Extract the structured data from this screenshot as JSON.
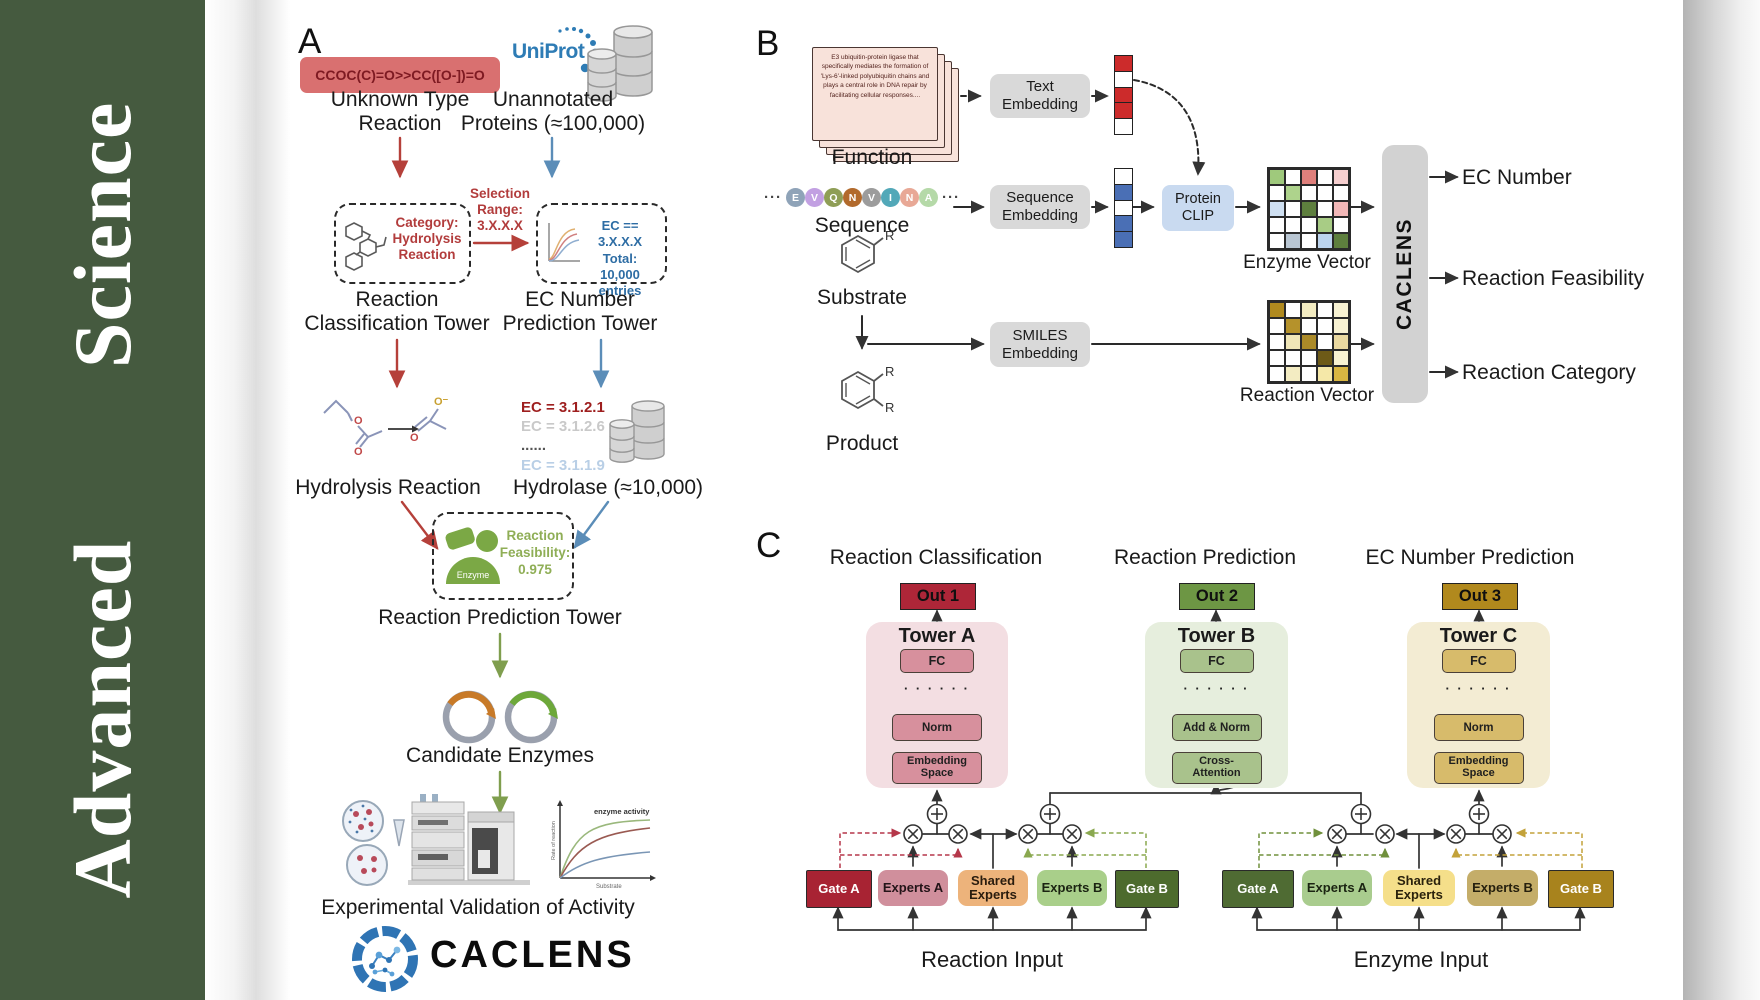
{
  "sidebar": {
    "journal": "Advanced Science",
    "bg": "#455a3f"
  },
  "panelA": {
    "label": "A",
    "smiles": "CCOC(C)=O>>CC([O-])=O",
    "uniprot": "UniProt",
    "unknown": "Unknown Type\nReaction",
    "unannotated": "Unannotated\nProteins (≈100,000)",
    "selection": "Selection\nRange:\n3.X.X.X",
    "class_box": "Category:\nHydrolysis\nReaction",
    "ec_box": "EC == 3.X.X.X\nTotal: 10,000\nentries",
    "class_tower": "Reaction\nClassification Tower",
    "ec_tower": "EC Number\nPrediction Tower",
    "hydrolysis": "Hydrolysis Reaction",
    "ec_list": [
      {
        "text": "EC = 3.1.2.1",
        "color": "#9e1f1f"
      },
      {
        "text": "EC = 3.1.2.6",
        "color": "#c9c9c9"
      },
      {
        "text": "......",
        "color": "#555555"
      },
      {
        "text": "EC = 3.1.1.9",
        "color": "#b9cfe6"
      }
    ],
    "hydrolase": "Hydrolase (≈10,000)",
    "enzyme_badge": "Enzyme",
    "feasibility": "Reaction\nFeasibility:\n0.975",
    "pred_tower": "Reaction Prediction Tower",
    "candidates": "Candidate Enzymes",
    "graph": {
      "title": "enzyme activity",
      "ylabel": "Rate of reaction",
      "xlabel": "Substrate"
    },
    "validation": "Experimental Validation of Activity",
    "logo": "CACLENS"
  },
  "panelB": {
    "label": "B",
    "function_card": "E3 ubiquitin-protein ligase that specifically mediates the formation of 'Lys-6'-linked polyubiquitin chains and plays a central role in DNA repair by facilitating cellular responses....",
    "function": "Function",
    "sequence": "Sequence",
    "ellipsis": "···",
    "residues": [
      {
        "l": "E",
        "c": "#8fa3b8"
      },
      {
        "l": "V",
        "c": "#c2a0e2"
      },
      {
        "l": "Q",
        "c": "#8f9e56"
      },
      {
        "l": "N",
        "c": "#b26a2c"
      },
      {
        "l": "V",
        "c": "#9c9c9c"
      },
      {
        "l": "I",
        "c": "#52a8b8"
      },
      {
        "l": "N",
        "c": "#e8a896"
      },
      {
        "l": "A",
        "c": "#b5d9a8"
      }
    ],
    "text_emb": "Text\nEmbedding",
    "seq_emb": "Sequence\nEmbedding",
    "smiles_emb": "SMILES\nEmbedding",
    "clip": "Protein\nCLIP",
    "substrate": "Substrate",
    "product": "Product",
    "r_label": "R",
    "text_vec": [
      "#cc2b2b",
      "#ffffff",
      "#cc2b2b",
      "#cc2b2b",
      "#ffffff"
    ],
    "seq_vec": [
      "#ffffff",
      "#4a6fb5",
      "#ffffff",
      "#4a6fb5",
      "#4a6fb5"
    ],
    "enzyme_vec": {
      "label": "Enzyme Vector",
      "cells": [
        "#9fc97c",
        "#ffffff",
        "#e0807c",
        "#ffffff",
        "#f6cfcf",
        "#ffffff",
        "#aed38c",
        "#ffffff",
        "#ffffff",
        "#ffffff",
        "#cfe0f2",
        "#ffffff",
        "#5e7f3e",
        "#ffffff",
        "#f2b8b8",
        "#ffffff",
        "#ffffff",
        "#ffffff",
        "#a8cc85",
        "#ffffff",
        "#ffffff",
        "#b9c6d3",
        "#ffffff",
        "#bcd4ee",
        "#5e7f3e"
      ]
    },
    "reaction_vec": {
      "label": "Reaction Vector",
      "cells": [
        "#b08a1f",
        "#ffffff",
        "#f3ecc2",
        "#ffffff",
        "#f8f2d2",
        "#ffffff",
        "#b5922b",
        "#ffffff",
        "#ffffff",
        "#f8f2d2",
        "#ffffff",
        "#f0e6b8",
        "#ab8a28",
        "#ffffff",
        "#ead9a0",
        "#ffffff",
        "#ffffff",
        "#ffffff",
        "#6d5a17",
        "#f8f2d2",
        "#ffffff",
        "#f3ecc2",
        "#ffffff",
        "#f5e8a8",
        "#d9b642"
      ]
    },
    "caclens": "CACLENS",
    "outputs": [
      "EC Number",
      "Reaction Feasibility",
      "Reaction Category"
    ]
  },
  "panelC": {
    "label": "C",
    "headers": [
      "Reaction Classification",
      "Reaction Prediction",
      "EC Number Prediction"
    ],
    "towers": [
      {
        "out": "Out 1",
        "out_bg": "#ae2638",
        "name": "Tower A",
        "fc": "FC",
        "dots": "· · · · · ·",
        "mid": "Norm",
        "bottom": "Embedding\nSpace",
        "bg": "#f3dee2",
        "box_bg": "#d7909d"
      },
      {
        "out": "Out 2",
        "out_bg": "#6d9644",
        "name": "Tower B",
        "fc": "FC",
        "dots": "· · · · · ·",
        "mid": "Add & Norm",
        "bottom": "Cross-\nAttention",
        "bg": "#e6eedd",
        "box_bg": "#a9c28c"
      },
      {
        "out": "Out 3",
        "out_bg": "#b1891d",
        "name": "Tower C",
        "fc": "FC",
        "dots": "· · · · · ·",
        "mid": "Norm",
        "bottom": "Embedding\nSpace",
        "bg": "#f3ecd3",
        "box_bg": "#d7bb6b"
      }
    ],
    "groups": [
      {
        "label": "Reaction Input",
        "boxes": [
          {
            "t": "Gate A",
            "bg": "#a82333",
            "fg": "#ffffff"
          },
          {
            "t": "Experts A",
            "bg": "#d08f9c",
            "fg": "#241418"
          },
          {
            "t": "Shared\nExperts",
            "bg": "#edb37b",
            "fg": "#2a1c0e"
          },
          {
            "t": "Experts B",
            "bg": "#a9cf8a",
            "fg": "#1b2412"
          },
          {
            "t": "Gate B",
            "bg": "#4d6b2d",
            "fg": "#ffffff"
          }
        ]
      },
      {
        "label": "Enzyme Input",
        "boxes": [
          {
            "t": "Gate A",
            "bg": "#4f6b33",
            "fg": "#ffffff"
          },
          {
            "t": "Experts A",
            "bg": "#a9cc8e",
            "fg": "#1b2412"
          },
          {
            "t": "Shared\nExperts",
            "bg": "#f5df8a",
            "fg": "#2a220c"
          },
          {
            "t": "Experts B",
            "bg": "#c4ad69",
            "fg": "#26200e"
          },
          {
            "t": "Gate B",
            "bg": "#a8831d",
            "fg": "#ffffff"
          }
        ]
      }
    ]
  },
  "palette": {
    "sidebar_green": "#455a3f",
    "arrow_red": "#b5403a",
    "arrow_blue": "#5b8db8",
    "arrow_green": "#7f9e4e",
    "gate_red_dash": "#b5374a",
    "gate_green_dash": "#8aa84f",
    "gate_olive_dash": "#70903c",
    "gate_gold_dash": "#c3a23a"
  }
}
